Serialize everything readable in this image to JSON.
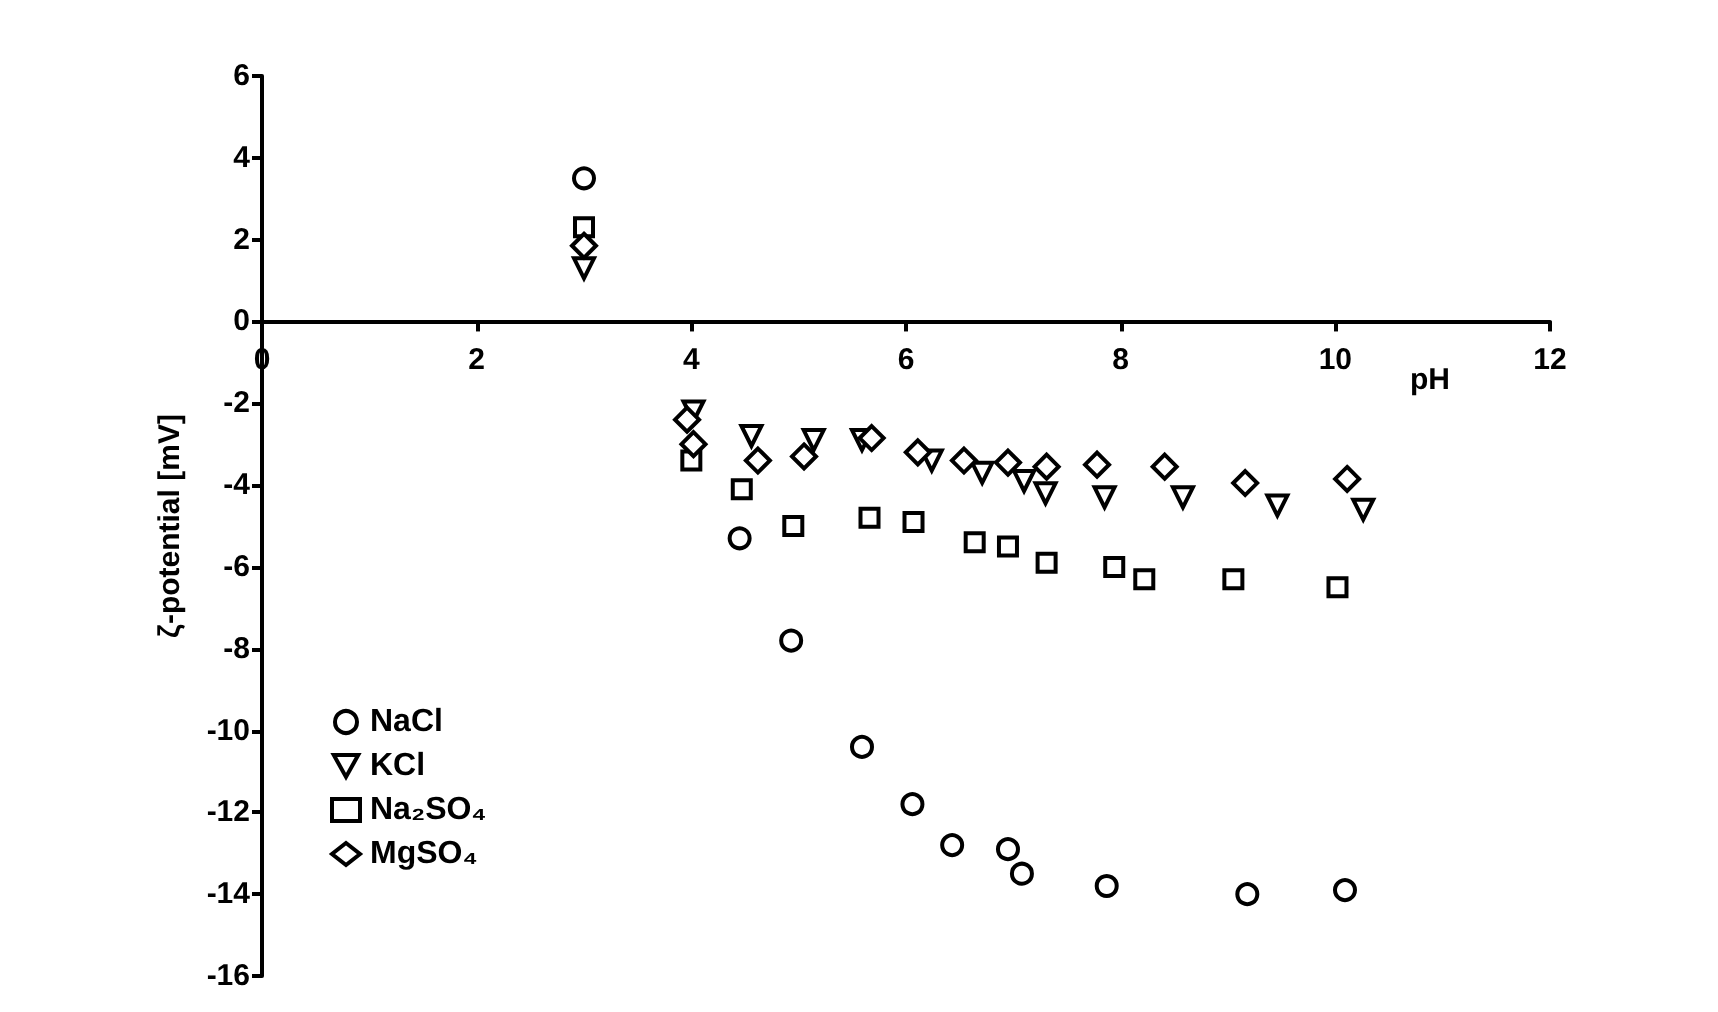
{
  "chart_data": {
    "type": "scatter",
    "xlabel": "pH",
    "ylabel": "ζ-potential [mV]",
    "xlim": [
      0,
      12
    ],
    "xticks": [
      0,
      2,
      4,
      6,
      8,
      10,
      12
    ],
    "ylim": [
      -16,
      6
    ],
    "yticks": [
      -16,
      -14,
      -12,
      -10,
      -8,
      -6,
      -4,
      -2,
      0,
      2,
      4,
      6
    ],
    "grid": false,
    "legend": "bottom left",
    "series": [
      {
        "name": "NaCl",
        "color": "#000000",
        "marker": "circle",
        "x": [
          3.0,
          4.45,
          4.93,
          5.59,
          6.06,
          6.43,
          6.95,
          7.08,
          7.87,
          9.18,
          10.09
        ],
        "values": [
          3.5,
          -5.3,
          -7.8,
          -10.4,
          -11.8,
          -12.8,
          -12.9,
          -13.5,
          -13.8,
          -14.0,
          -13.9
        ]
      },
      {
        "name": "KCl",
        "color": "#000000",
        "marker": "triangle",
        "x": [
          3.0,
          4.02,
          4.56,
          5.14,
          5.59,
          6.24,
          6.71,
          7.1,
          7.3,
          7.85,
          8.58,
          9.46,
          10.26
        ],
        "values": [
          1.3,
          -2.2,
          -2.8,
          -2.9,
          -2.9,
          -3.4,
          -3.7,
          -3.9,
          -4.2,
          -4.3,
          -4.3,
          -4.5,
          -4.6
        ]
      },
      {
        "name": "Na₂SO₄",
        "color": "#000000",
        "marker": "square",
        "x": [
          3.0,
          4.0,
          4.47,
          4.95,
          5.66,
          6.07,
          6.64,
          6.95,
          7.31,
          7.94,
          8.22,
          9.05,
          10.02
        ],
        "values": [
          2.3,
          -3.4,
          -4.1,
          -5.0,
          -4.8,
          -4.9,
          -5.4,
          -5.5,
          -5.9,
          -6.0,
          -6.3,
          -6.3,
          -6.5
        ]
      },
      {
        "name": "MgSO₄",
        "color": "#000000",
        "marker": "diamond",
        "x": [
          3.0,
          3.96,
          4.02,
          4.62,
          5.05,
          5.68,
          6.11,
          6.54,
          6.95,
          7.31,
          7.78,
          8.41,
          9.16,
          10.11
        ],
        "values": [
          1.85,
          -2.4,
          -3.0,
          -3.4,
          -3.3,
          -2.85,
          -3.2,
          -3.4,
          -3.45,
          -3.55,
          -3.5,
          -3.55,
          -3.95,
          -3.85
        ]
      }
    ]
  }
}
